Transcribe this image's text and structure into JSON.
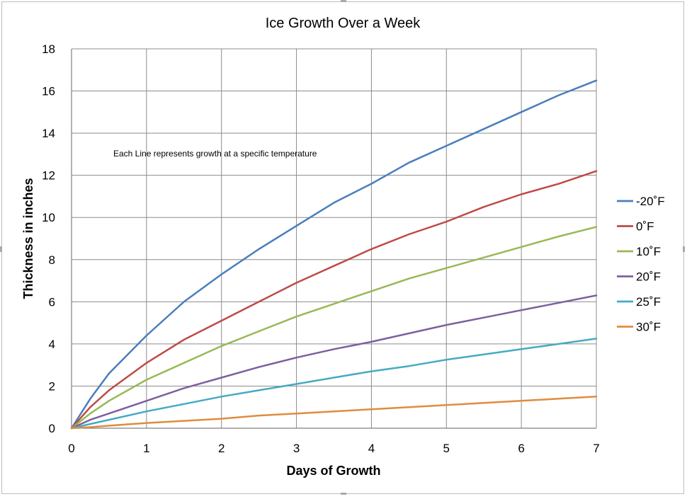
{
  "chart_data": {
    "type": "line",
    "title": "Ice Growth Over a Week",
    "xlabel": "Days of Growth",
    "ylabel": "Thickness in inches",
    "xlim": [
      0,
      7
    ],
    "ylim": [
      0,
      18
    ],
    "xticks": [
      0,
      1,
      2,
      3,
      4,
      5,
      6,
      7
    ],
    "yticks": [
      0,
      2,
      4,
      6,
      8,
      10,
      12,
      14,
      16,
      18
    ],
    "grid": true,
    "legend_position": "right",
    "annotation": "Each Line represents growth at a specific temperature",
    "x": [
      0,
      0.25,
      0.5,
      1,
      1.5,
      2,
      2.5,
      3,
      3.5,
      4,
      4.5,
      5,
      5.5,
      6,
      6.5,
      7
    ],
    "series": [
      {
        "name": "-20˚F",
        "color": "#4a7ebb",
        "values": [
          0,
          1.4,
          2.6,
          4.4,
          6.0,
          7.3,
          8.5,
          9.6,
          10.7,
          11.6,
          12.6,
          13.4,
          14.2,
          15.0,
          15.8,
          16.5
        ]
      },
      {
        "name": "0˚F",
        "color": "#be4b48",
        "values": [
          0,
          1.0,
          1.8,
          3.1,
          4.2,
          5.1,
          6.0,
          6.9,
          7.7,
          8.5,
          9.2,
          9.8,
          10.5,
          11.1,
          11.6,
          12.2
        ]
      },
      {
        "name": "10˚F",
        "color": "#98b954",
        "values": [
          0,
          0.7,
          1.3,
          2.3,
          3.1,
          3.9,
          4.6,
          5.3,
          5.9,
          6.5,
          7.1,
          7.6,
          8.1,
          8.6,
          9.1,
          9.55
        ]
      },
      {
        "name": "20˚F",
        "color": "#7d60a0",
        "values": [
          0,
          0.4,
          0.7,
          1.3,
          1.9,
          2.4,
          2.9,
          3.35,
          3.75,
          4.1,
          4.5,
          4.9,
          5.25,
          5.6,
          5.95,
          6.3
        ]
      },
      {
        "name": "25˚F",
        "color": "#46aac4",
        "values": [
          0,
          0.2,
          0.4,
          0.8,
          1.15,
          1.5,
          1.8,
          2.1,
          2.4,
          2.7,
          2.95,
          3.25,
          3.5,
          3.75,
          4.0,
          4.25
        ]
      },
      {
        "name": "30˚F",
        "color": "#e08c3e",
        "values": [
          0,
          0.05,
          0.12,
          0.25,
          0.35,
          0.45,
          0.6,
          0.7,
          0.8,
          0.9,
          1.0,
          1.1,
          1.2,
          1.3,
          1.4,
          1.5
        ]
      }
    ]
  }
}
